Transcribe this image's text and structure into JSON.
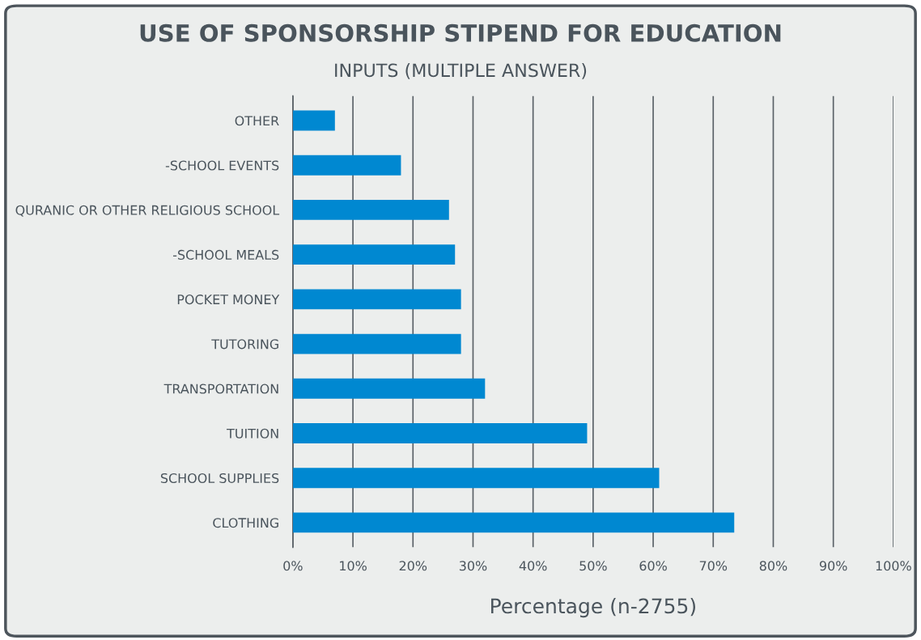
{
  "chart_data": {
    "type": "bar",
    "orientation": "horizontal",
    "title": "USE OF SPONSORSHIP STIPEND FOR EDUCATION",
    "subtitle": "INPUTS (MULTIPLE ANSWER)",
    "xlabel": "Percentage (n-2755)",
    "categories": [
      "OTHER",
      "-SCHOOL EVENTS",
      "QURANIC OR OTHER RELIGIOUS SCHOOL",
      "-SCHOOL MEALS",
      "POCKET MONEY",
      "TUTORING",
      "TRANSPORTATION",
      "TUITION",
      "SCHOOL SUPPLIES",
      "CLOTHING"
    ],
    "values": [
      7,
      18,
      26,
      27,
      28,
      28,
      32,
      49,
      61,
      73.5
    ],
    "color": "#0088d1",
    "xlim": [
      0,
      100
    ],
    "xticks": [
      {
        "value": 0,
        "label": "0%"
      },
      {
        "value": 10,
        "label": "10%"
      },
      {
        "value": 20,
        "label": "20%"
      },
      {
        "value": 30,
        "label": "30%"
      },
      {
        "value": 40,
        "label": "40%"
      },
      {
        "value": 50,
        "label": "50%"
      },
      {
        "value": 60,
        "label": "60%"
      },
      {
        "value": 70,
        "label": "70%"
      },
      {
        "value": 80,
        "label": "80%"
      },
      {
        "value": 90,
        "label": "90%"
      },
      {
        "value": 100,
        "label": "100%"
      }
    ],
    "grid": "x",
    "legend": false
  }
}
